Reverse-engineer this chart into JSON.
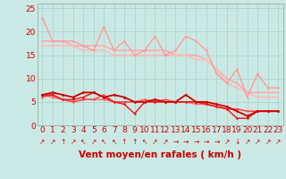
{
  "xlabel": "Vent moyen/en rafales ( km/h )",
  "xlim": [
    -0.5,
    23.5
  ],
  "ylim": [
    0,
    26
  ],
  "yticks": [
    0,
    5,
    10,
    15,
    20,
    25
  ],
  "xticks": [
    0,
    1,
    2,
    3,
    4,
    5,
    6,
    7,
    8,
    9,
    10,
    11,
    12,
    13,
    14,
    15,
    16,
    17,
    18,
    19,
    20,
    21,
    22,
    23
  ],
  "bg_color": "#cbe9e4",
  "grid_color": "#aad5d0",
  "lines": [
    {
      "y": [
        23,
        18,
        18,
        18,
        17,
        16,
        21,
        16,
        18,
        15,
        16,
        19,
        15,
        16,
        19,
        18,
        16,
        11,
        9,
        12,
        6,
        11,
        8,
        8
      ],
      "color": "#ff9999",
      "lw": 1.0,
      "marker": "o",
      "ms": 1.8,
      "zorder": 3
    },
    {
      "y": [
        18,
        18,
        18,
        17,
        17,
        17,
        17,
        16,
        16,
        16,
        16,
        16,
        16,
        15,
        15,
        15,
        14,
        12,
        10,
        9,
        7,
        7,
        7,
        7
      ],
      "color": "#ffaaaa",
      "lw": 1.2,
      "marker": "o",
      "ms": 1.5,
      "zorder": 2
    },
    {
      "y": [
        17,
        17,
        17,
        17,
        16,
        16,
        16,
        15,
        15,
        15,
        15,
        15,
        15,
        15,
        15,
        14,
        14,
        12,
        9,
        8,
        7,
        6,
        6,
        6
      ],
      "color": "#ffbbbb",
      "lw": 1.2,
      "marker": "o",
      "ms": 1.5,
      "zorder": 2
    },
    {
      "y": [
        6.5,
        7,
        6.5,
        6,
        7,
        7,
        6,
        6.5,
        6,
        5,
        5,
        5.5,
        5,
        5,
        6.5,
        5,
        5,
        4.5,
        4,
        3,
        2,
        3,
        3,
        3
      ],
      "color": "#cc0000",
      "lw": 1.3,
      "marker": "o",
      "ms": 2.0,
      "zorder": 6
    },
    {
      "y": [
        6.5,
        6.5,
        5.5,
        5.5,
        6,
        7,
        6,
        5,
        4.5,
        2.5,
        5,
        5,
        5,
        5,
        5,
        5,
        4.5,
        4,
        3.5,
        1.5,
        1.5,
        3,
        3,
        3
      ],
      "color": "#ee1111",
      "lw": 1.0,
      "marker": "o",
      "ms": 1.8,
      "zorder": 5
    },
    {
      "y": [
        6,
        6.5,
        5.5,
        5,
        5.5,
        5.5,
        6.5,
        5,
        5,
        5,
        5.5,
        5,
        5.5,
        5,
        5,
        5,
        4.5,
        4,
        3.5,
        3.5,
        3,
        3,
        3,
        3
      ],
      "color": "#ff4444",
      "lw": 1.0,
      "marker": "o",
      "ms": 1.5,
      "zorder": 4
    },
    {
      "y": [
        6.5,
        6,
        5.5,
        5,
        5.5,
        5.5,
        5.5,
        5,
        5,
        5,
        5,
        5,
        5,
        5,
        5,
        4.5,
        4.5,
        4,
        3.5,
        3.5,
        3,
        3,
        3,
        3
      ],
      "color": "#ff6666",
      "lw": 1.0,
      "marker": "o",
      "ms": 1.5,
      "zorder": 3
    }
  ],
  "wind_arrows": [
    "↗",
    "↗",
    "↑",
    "↗",
    "↖",
    "↗",
    "↖",
    "↖",
    "↑",
    "↑",
    "↖",
    "↗",
    "↗",
    "→",
    "→",
    "→",
    "→",
    "→",
    "↗",
    "↓",
    "↗",
    "↗",
    "↗",
    "↗"
  ],
  "xlabel_color": "#cc0000",
  "xlabel_fontsize": 7.5,
  "tick_fontsize": 6.5,
  "arrow_fontsize": 5.5
}
